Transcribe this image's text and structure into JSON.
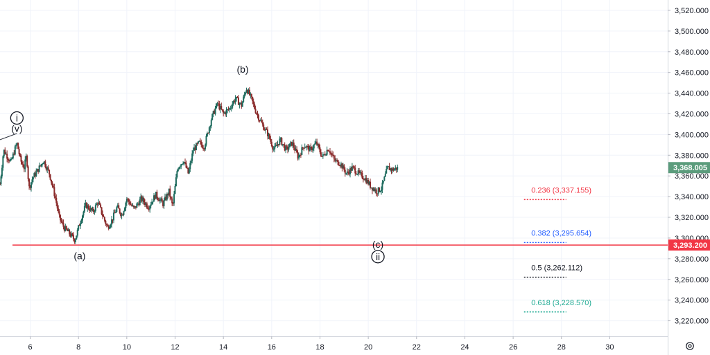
{
  "chart_data": {
    "type": "candlestick",
    "x_ticks": [
      "6",
      "8",
      "10",
      "12",
      "14",
      "16",
      "18",
      "20",
      "22",
      "24",
      "26",
      "28",
      "30"
    ],
    "y_ticks": [
      "3,220.000",
      "3,240.000",
      "3,260.000",
      "3,280.000",
      "3,300.000",
      "3,320.000",
      "3,340.000",
      "3,360.000",
      "3,380.000",
      "3,400.000",
      "3,420.000",
      "3,440.000",
      "3,460.000",
      "3,480.000",
      "3,500.000",
      "3,520.000"
    ],
    "ylim": [
      3205,
      3530
    ],
    "xlim": [
      4.75,
      32.4
    ],
    "grid": true,
    "colors": {
      "up": "#1e6b5e",
      "down": "#8a2a2a",
      "support": "#f23645",
      "price_badge": "#5b9c7c",
      "grid": "#f0f3fa"
    },
    "last_price": {
      "value": 3368.005,
      "label": "3,368.005"
    },
    "support_line": {
      "value": 3293.2,
      "label": "3,293.200"
    },
    "price_path": [
      [
        4.75,
        3352
      ],
      [
        4.9,
        3385
      ],
      [
        5.2,
        3373
      ],
      [
        5.45,
        3392
      ],
      [
        5.6,
        3375
      ],
      [
        5.75,
        3368
      ],
      [
        5.85,
        3380
      ],
      [
        5.95,
        3348
      ],
      [
        6.1,
        3358
      ],
      [
        6.3,
        3365
      ],
      [
        6.55,
        3375
      ],
      [
        6.8,
        3362
      ],
      [
        7.05,
        3338
      ],
      [
        7.2,
        3320
      ],
      [
        7.4,
        3310
      ],
      [
        7.6,
        3305
      ],
      [
        7.85,
        3298
      ],
      [
        8.1,
        3318
      ],
      [
        8.3,
        3332
      ],
      [
        8.6,
        3325
      ],
      [
        8.8,
        3335
      ],
      [
        9.0,
        3322
      ],
      [
        9.2,
        3310
      ],
      [
        9.4,
        3318
      ],
      [
        9.6,
        3330
      ],
      [
        9.8,
        3322
      ],
      [
        10.0,
        3338
      ],
      [
        10.3,
        3328
      ],
      [
        10.6,
        3338
      ],
      [
        10.9,
        3330
      ],
      [
        11.2,
        3342
      ],
      [
        11.5,
        3333
      ],
      [
        11.75,
        3345
      ],
      [
        11.9,
        3330
      ],
      [
        12.1,
        3368
      ],
      [
        12.35,
        3375
      ],
      [
        12.55,
        3362
      ],
      [
        12.75,
        3385
      ],
      [
        13.0,
        3392
      ],
      [
        13.2,
        3388
      ],
      [
        13.5,
        3415
      ],
      [
        13.75,
        3430
      ],
      [
        14.0,
        3420
      ],
      [
        14.25,
        3425
      ],
      [
        14.5,
        3435
      ],
      [
        14.75,
        3428
      ],
      [
        14.95,
        3445
      ],
      [
        15.15,
        3435
      ],
      [
        15.35,
        3422
      ],
      [
        15.6,
        3410
      ],
      [
        15.85,
        3400
      ],
      [
        16.1,
        3385
      ],
      [
        16.35,
        3395
      ],
      [
        16.6,
        3385
      ],
      [
        16.85,
        3392
      ],
      [
        17.1,
        3378
      ],
      [
        17.35,
        3390
      ],
      [
        17.6,
        3385
      ],
      [
        17.85,
        3392
      ],
      [
        18.1,
        3378
      ],
      [
        18.35,
        3387
      ],
      [
        18.6,
        3375
      ],
      [
        18.85,
        3372
      ],
      [
        19.1,
        3362
      ],
      [
        19.35,
        3368
      ],
      [
        19.6,
        3362
      ],
      [
        19.85,
        3358
      ],
      [
        20.1,
        3350
      ],
      [
        20.35,
        3345
      ],
      [
        20.55,
        3348
      ],
      [
        20.8,
        3368
      ],
      [
        21.0,
        3366
      ],
      [
        21.25,
        3368
      ]
    ],
    "wave_labels": [
      {
        "text": "i",
        "circled": true,
        "x": 5.45,
        "y": 3416
      },
      {
        "text": "(v)",
        "circled": false,
        "x": 5.45,
        "y": 3406
      },
      {
        "text": "(a)",
        "circled": false,
        "x": 8.05,
        "y": 3283
      },
      {
        "text": "(b)",
        "circled": false,
        "x": 14.8,
        "y": 3463
      },
      {
        "text": "(c)",
        "circled": false,
        "x": 20.4,
        "y": 3294
      },
      {
        "text": "ii",
        "circled": true,
        "x": 20.4,
        "y": 3282
      }
    ],
    "fibonacci": [
      {
        "ratio": "0.236",
        "value": 3337.155,
        "label": "0.236 (3,337.155)",
        "color": "#f23645"
      },
      {
        "ratio": "0.382",
        "value": 3295.654,
        "label": "0.382 (3,295.654)",
        "color": "#2962ff"
      },
      {
        "ratio": "0.5",
        "value": 3262.112,
        "label": "0.5 (3,262.112)",
        "color": "#131722"
      },
      {
        "ratio": "0.618",
        "value": 3228.57,
        "label": "0.618 (3,228.570)",
        "color": "#22ab94"
      }
    ],
    "trend_lines": [
      {
        "from": [
          4.75,
          3395
        ],
        "to": [
          5.45,
          3401
        ]
      }
    ]
  },
  "toolbar": {
    "settings_icon": "settings-gear-icon"
  }
}
